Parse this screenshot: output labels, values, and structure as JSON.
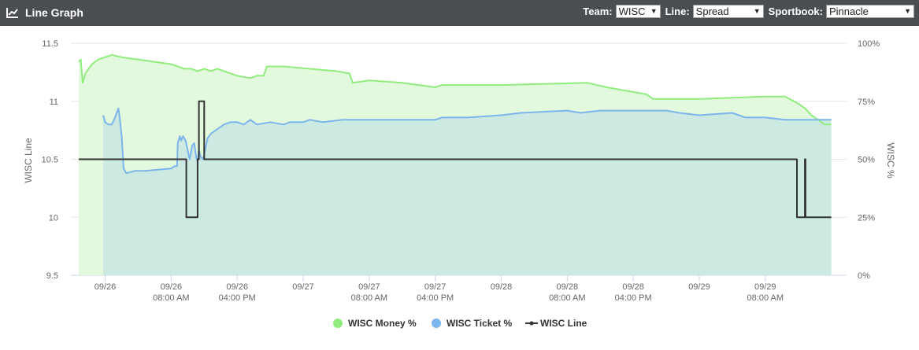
{
  "header": {
    "title": "Line Graph",
    "icon": "line-chart-icon",
    "team_label": "Team:",
    "team_value": "WISC",
    "line_label": "Line:",
    "line_value": "Spread",
    "sportsbook_label": "Sportbook:",
    "sportsbook_value": "Pinnacle"
  },
  "chart_data": {
    "type": "line",
    "ylabel": "WISC Line",
    "y2label": "WISC %",
    "ylim": [
      9.5,
      11.5
    ],
    "yticks": [
      "11.5",
      "11",
      "10.5",
      "10",
      "9.5"
    ],
    "y2lim": [
      0,
      100
    ],
    "y2ticks": [
      "100%",
      "75%",
      "50%",
      "25%",
      "0%"
    ],
    "xrange": [
      -0.4,
      11.1
    ],
    "xticks": [
      {
        "x": 0,
        "l1": "09/26",
        "l2": ""
      },
      {
        "x": 1,
        "l1": "09/26",
        "l2": "08:00 AM"
      },
      {
        "x": 2,
        "l1": "09/26",
        "l2": "04:00 PM"
      },
      {
        "x": 3,
        "l1": "09/27",
        "l2": ""
      },
      {
        "x": 4,
        "l1": "09/27",
        "l2": "08:00 AM"
      },
      {
        "x": 5,
        "l1": "09/27",
        "l2": "04:00 PM"
      },
      {
        "x": 6,
        "l1": "09/28",
        "l2": ""
      },
      {
        "x": 7,
        "l1": "09/28",
        "l2": "08:00 AM"
      },
      {
        "x": 8,
        "l1": "09/28",
        "l2": "04:00 PM"
      },
      {
        "x": 9,
        "l1": "09/29",
        "l2": ""
      },
      {
        "x": 10,
        "l1": "09/29",
        "l2": "08:00 AM"
      }
    ],
    "grid": true,
    "legend_position": "bottom",
    "series": [
      {
        "name": "WISC Money %",
        "axis": "right",
        "color": "#90ed7d",
        "fill": "#e3f9dd",
        "points": [
          [
            -0.4,
            92
          ],
          [
            -0.37,
            93
          ],
          [
            -0.34,
            83
          ],
          [
            -0.3,
            87
          ],
          [
            -0.2,
            91
          ],
          [
            -0.1,
            93
          ],
          [
            0,
            94
          ],
          [
            0.1,
            95
          ],
          [
            0.25,
            94
          ],
          [
            0.5,
            93
          ],
          [
            1,
            91
          ],
          [
            1.1,
            90
          ],
          [
            1.2,
            89
          ],
          [
            1.3,
            89
          ],
          [
            1.4,
            88
          ],
          [
            1.5,
            89
          ],
          [
            1.6,
            88
          ],
          [
            1.7,
            89
          ],
          [
            1.9,
            87
          ],
          [
            2.0,
            86
          ],
          [
            2.2,
            85
          ],
          [
            2.3,
            86
          ],
          [
            2.4,
            86
          ],
          [
            2.45,
            90
          ],
          [
            2.7,
            90
          ],
          [
            3.5,
            88
          ],
          [
            3.7,
            87
          ],
          [
            3.75,
            83
          ],
          [
            4,
            84
          ],
          [
            4.5,
            83
          ],
          [
            5,
            81
          ],
          [
            5.1,
            82
          ],
          [
            6,
            82
          ],
          [
            7.3,
            83
          ],
          [
            7.6,
            81
          ],
          [
            8.2,
            78
          ],
          [
            8.3,
            76
          ],
          [
            9,
            76
          ],
          [
            10,
            77
          ],
          [
            10.3,
            77
          ],
          [
            10.5,
            74
          ],
          [
            10.6,
            72
          ],
          [
            10.7,
            69
          ],
          [
            10.8,
            67
          ],
          [
            10.9,
            65
          ],
          [
            11,
            65
          ]
        ]
      },
      {
        "name": "WISC Ticket %",
        "axis": "right",
        "color": "#7cb5ec",
        "fill": "#cce9e2",
        "points": [
          [
            -0.03,
            69
          ],
          [
            0,
            66
          ],
          [
            0.05,
            65
          ],
          [
            0.1,
            65
          ],
          [
            0.15,
            68
          ],
          [
            0.2,
            72
          ],
          [
            0.22,
            68
          ],
          [
            0.25,
            60
          ],
          [
            0.28,
            46
          ],
          [
            0.32,
            44
          ],
          [
            0.45,
            45
          ],
          [
            0.6,
            45
          ],
          [
            1.0,
            46
          ],
          [
            1.05,
            47
          ],
          [
            1.09,
            47
          ],
          [
            1.1,
            57
          ],
          [
            1.13,
            60
          ],
          [
            1.15,
            58
          ],
          [
            1.18,
            60
          ],
          [
            1.22,
            58
          ],
          [
            1.25,
            54
          ],
          [
            1.28,
            50
          ],
          [
            1.32,
            56
          ],
          [
            1.35,
            57
          ],
          [
            1.38,
            51
          ],
          [
            1.4,
            49
          ],
          [
            1.42,
            54
          ],
          [
            1.45,
            51
          ],
          [
            1.48,
            50
          ],
          [
            1.5,
            52
          ],
          [
            1.55,
            59
          ],
          [
            1.6,
            61
          ],
          [
            1.65,
            62
          ],
          [
            1.7,
            63
          ],
          [
            1.8,
            65
          ],
          [
            1.9,
            66
          ],
          [
            2.0,
            66
          ],
          [
            2.1,
            65
          ],
          [
            2.2,
            67
          ],
          [
            2.3,
            65
          ],
          [
            2.5,
            66
          ],
          [
            2.7,
            65
          ],
          [
            2.8,
            66
          ],
          [
            3.0,
            66
          ],
          [
            3.1,
            67
          ],
          [
            3.3,
            66
          ],
          [
            3.6,
            67
          ],
          [
            4,
            67
          ],
          [
            4.5,
            67
          ],
          [
            4.9,
            67
          ],
          [
            5.0,
            67
          ],
          [
            5.1,
            68
          ],
          [
            5.5,
            68
          ],
          [
            6,
            69
          ],
          [
            6.3,
            70
          ],
          [
            7,
            71
          ],
          [
            7.2,
            70
          ],
          [
            7.5,
            71
          ],
          [
            8,
            71
          ],
          [
            8.2,
            71
          ],
          [
            8.5,
            71
          ],
          [
            8.7,
            70
          ],
          [
            9,
            69
          ],
          [
            9.5,
            70
          ],
          [
            9.7,
            68
          ],
          [
            10,
            68
          ],
          [
            10.3,
            67
          ],
          [
            10.5,
            67
          ],
          [
            10.6,
            67
          ],
          [
            10.7,
            67
          ],
          [
            10.8,
            67
          ],
          [
            10.9,
            67
          ],
          [
            11,
            67
          ]
        ]
      },
      {
        "name": "WISC Line",
        "axis": "left",
        "color": "#333333",
        "points": [
          [
            -0.4,
            10.5
          ],
          [
            1.23,
            10.5
          ],
          [
            1.23,
            10
          ],
          [
            1.4,
            10
          ],
          [
            1.4,
            10.5
          ],
          [
            1.42,
            10.5
          ],
          [
            1.42,
            11
          ],
          [
            1.5,
            11
          ],
          [
            1.5,
            10.5
          ],
          [
            10.48,
            10.5
          ],
          [
            10.48,
            10
          ],
          [
            10.6,
            10
          ],
          [
            10.6,
            10.5
          ],
          [
            10.61,
            10.5
          ],
          [
            10.61,
            10
          ],
          [
            11.0,
            10
          ]
        ]
      }
    ]
  }
}
